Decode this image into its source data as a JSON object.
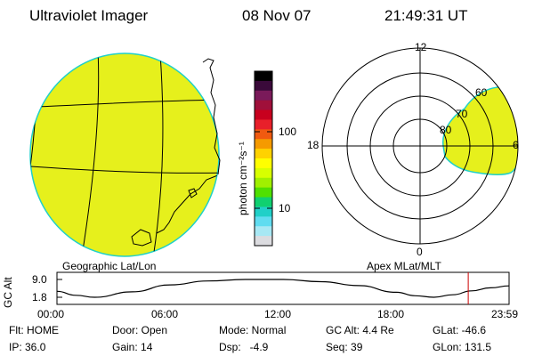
{
  "header": {
    "instrument": "Ultraviolet Imager",
    "date": "08 Nov 07",
    "time": "21:49:31 UT"
  },
  "colorbar": {
    "unit_label": "photon cm⁻²s⁻¹",
    "ticks": [
      "100",
      "10"
    ],
    "colors": [
      "#000000",
      "#3a0a3a",
      "#7a1a5a",
      "#a0103a",
      "#c8001e",
      "#e8202a",
      "#f05a10",
      "#f59a00",
      "#ffd200",
      "#ffff00",
      "#d8ff00",
      "#a0f000",
      "#50e000",
      "#10d070",
      "#20d0c8",
      "#60dcf0",
      "#a8e8f4",
      "#dcdce0"
    ]
  },
  "geo_map": {
    "label": "Geographic Lat/Lon",
    "fill_color": "#e6f01c"
  },
  "polar_plot": {
    "label": "Apex MLat/MLT",
    "mlt_labels": {
      "top": "12",
      "left": "18",
      "right": "6",
      "bottom": "0"
    },
    "lat_labels": [
      "60",
      "70",
      "80"
    ],
    "fill_color": "#e6f01c"
  },
  "timeline": {
    "axis_label": "GC Alt",
    "y_ticks": [
      "9.0",
      "1.8"
    ],
    "x_ticks": [
      "00:00",
      "06:00",
      "12:00",
      "18:00",
      "23:59"
    ],
    "marker_color": "#cc0000"
  },
  "status": {
    "flt_label": "Flt: HOME",
    "ip_label": "IP: 36.0",
    "door_label": "Door: Open",
    "gain_label": "Gain: 14",
    "mode_label": "Mode: Normal",
    "dsp_label": "Dsp:   -4.9",
    "gcalt_label": "GC Alt: 4.4 Re",
    "seq_label": "Seq: 39",
    "glat_label": "GLat: -46.6",
    "glon_label": "GLon: 131.5"
  },
  "chart_data": [
    {
      "type": "heatmap",
      "name": "geographic-projection",
      "title": "Geographic Lat/Lon",
      "value_shown": "uniform saturated intensity (~30 photon cm-2 s-1)"
    },
    {
      "type": "heatmap",
      "name": "magnetic-polar-projection",
      "title": "Apex MLat/MLT",
      "mlt_hours": [
        12,
        18,
        6,
        0
      ],
      "mlat_rings": [
        80,
        70,
        60
      ]
    },
    {
      "type": "line",
      "name": "gc-altitude-orbit",
      "ylabel": "GC Alt",
      "ylim": [
        1.8,
        9.0
      ],
      "x": [
        "00:00",
        "01:00",
        "02:00",
        "04:00",
        "06:00",
        "08:00",
        "10:00",
        "12:00",
        "14:00",
        "16:00",
        "18:00",
        "19:00",
        "20:00",
        "21:00",
        "22:00",
        "23:00",
        "23:59"
      ],
      "values": [
        4.2,
        2.6,
        1.8,
        4.0,
        6.8,
        8.4,
        9.0,
        9.0,
        8.1,
        6.5,
        3.8,
        2.4,
        1.8,
        2.8,
        4.4,
        5.6,
        6.4
      ],
      "marker_time": "21:49"
    }
  ]
}
